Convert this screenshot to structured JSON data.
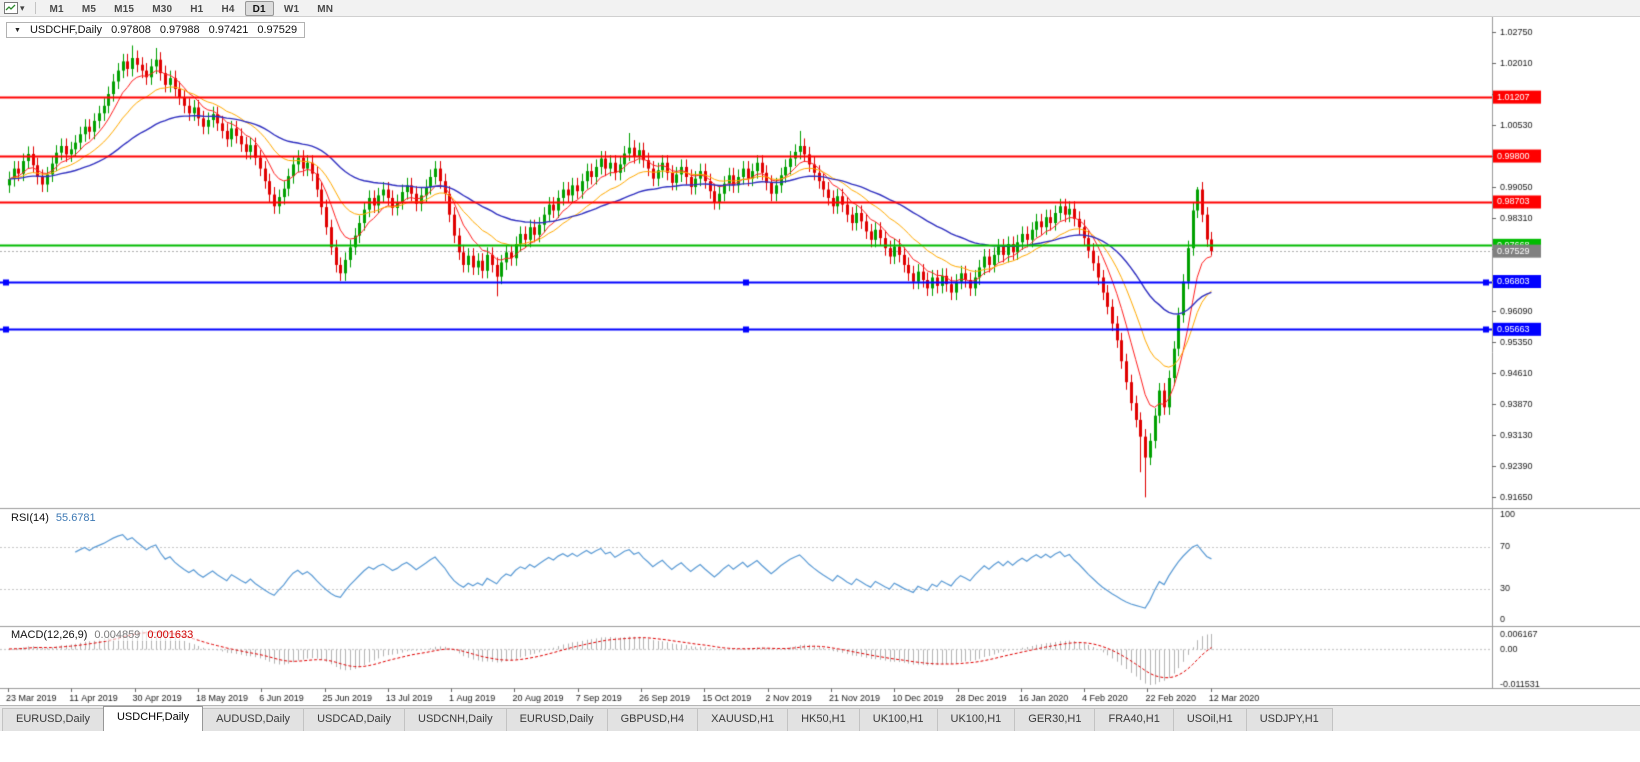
{
  "toolbar": {
    "timeframes": [
      "M1",
      "M5",
      "M15",
      "M30",
      "H1",
      "H4",
      "D1",
      "W1",
      "MN"
    ],
    "active_timeframe": "D1"
  },
  "icons": {
    "dropdown_caret": "▾",
    "symbol_caret": "▼"
  },
  "chart_header": {
    "symbol": "USDCHF,Daily",
    "open": "0.97808",
    "high": "0.97988",
    "low": "0.97421",
    "close": "0.97529"
  },
  "indicators": {
    "rsi": {
      "name": "RSI(14)",
      "value": "55.6781"
    },
    "macd": {
      "name": "MACD(12,26,9)",
      "value_main": "0.004859",
      "value_signal": "0.001633"
    }
  },
  "tabs": [
    "EURUSD,Daily",
    "USDCHF,Daily",
    "AUDUSD,Daily",
    "USDCAD,Daily",
    "USDCNH,Daily",
    "EURUSD,Daily",
    "GBPUSD,H4",
    "XAUUSD,H1",
    "HK50,H1",
    "UK100,H1",
    "UK100,H1",
    "GER30,H1",
    "FRA40,H1",
    "USOil,H1",
    "USDJPY,H1"
  ],
  "active_tab_index": 1,
  "chart_data": {
    "type": "candlestick",
    "symbol": "USDCHF",
    "timeframe": "Daily",
    "title": "USDCHF,Daily",
    "ohlc": {
      "open": 0.97808,
      "high": 0.97988,
      "low": 0.97421,
      "close": 0.97529
    },
    "x_labels": [
      "23 Mar 2019",
      "11 Apr 2019",
      "30 Apr 2019",
      "18 May 2019",
      "6 Jun 2019",
      "25 Jun 2019",
      "13 Jul 2019",
      "1 Aug 2019",
      "20 Aug 2019",
      "7 Sep 2019",
      "26 Sep 2019",
      "15 Oct 2019",
      "2 Nov 2019",
      "21 Nov 2019",
      "10 Dec 2019",
      "28 Dec 2019",
      "16 Jan 2020",
      "4 Feb 2020",
      "22 Feb 2020",
      "12 Mar 2020"
    ],
    "x_label_step": 63.3,
    "y_ticks": [
      "1.02750",
      "1.02010",
      "1.01270",
      "1.00530",
      "0.99790",
      "0.99050",
      "0.98310",
      "0.97570",
      "0.96830",
      "0.96090",
      "0.95350",
      "0.94610",
      "0.93870",
      "0.93130",
      "0.92390",
      "0.91650"
    ],
    "price_min": 0.9142,
    "price_max": 1.0312,
    "first_open": 0.991,
    "default_wick": 0.0018,
    "closes": [
      0.9925,
      0.995,
      0.9938,
      0.9968,
      0.9985,
      0.9958,
      0.993,
      0.9912,
      0.9936,
      0.9962,
      0.9988,
      1.0004,
      0.9984,
      0.9996,
      1.0012,
      1.0032,
      1.005,
      1.0038,
      1.0064,
      1.0082,
      1.01,
      1.0128,
      1.0158,
      1.0184,
      1.0206,
      1.0188,
      1.0214,
      1.0198,
      1.0184,
      1.0168,
      1.0194,
      1.021,
      1.0178,
      1.015,
      1.0166,
      1.014,
      1.012,
      1.01,
      1.0082,
      1.0096,
      1.007,
      1.005,
      1.0066,
      1.008,
      1.0058,
      1.004,
      1.002,
      1.0046,
      1.0028,
      1.0008,
      0.999,
      1.0006,
      0.9976,
      0.995,
      0.992,
      0.9888,
      0.986,
      0.9882,
      0.9902,
      0.9932,
      0.996,
      0.9976,
      0.995,
      0.9964,
      0.9938,
      0.99,
      0.9858,
      0.981,
      0.9762,
      0.972,
      0.97,
      0.9732,
      0.9762,
      0.979,
      0.982,
      0.9852,
      0.988,
      0.9862,
      0.9886,
      0.99,
      0.988,
      0.9856,
      0.987,
      0.9894,
      0.991,
      0.989,
      0.9866,
      0.9886,
      0.9906,
      0.993,
      0.995,
      0.992,
      0.989,
      0.984,
      0.979,
      0.975,
      0.972,
      0.9742,
      0.9714,
      0.973,
      0.9706,
      0.9744,
      0.972,
      0.9692,
      0.9726,
      0.975,
      0.9736,
      0.977,
      0.9794,
      0.978,
      0.981,
      0.9792,
      0.9816,
      0.984,
      0.9864,
      0.985,
      0.988,
      0.99,
      0.9886,
      0.991,
      0.9896,
      0.992,
      0.9944,
      0.993,
      0.9954,
      0.9974,
      0.995,
      0.9964,
      0.994,
      0.996,
      0.9986,
      1.0,
      0.998,
      0.9994,
      0.997,
      0.995,
      0.9926,
      0.9946,
      0.9964,
      0.994,
      0.9916,
      0.9936,
      0.9954,
      0.993,
      0.9906,
      0.9926,
      0.9944,
      0.992,
      0.9896,
      0.987,
      0.989,
      0.9914,
      0.9934,
      0.991,
      0.993,
      0.995,
      0.9926,
      0.9944,
      0.9964,
      0.994,
      0.9916,
      0.989,
      0.991,
      0.9934,
      0.9954,
      0.9974,
      0.999,
      1.0004,
      0.9984,
      0.996,
      0.994,
      0.992,
      0.99,
      0.988,
      0.986,
      0.9884,
      0.9864,
      0.984,
      0.982,
      0.9844,
      0.9824,
      0.98,
      0.978,
      0.9804,
      0.9784,
      0.976,
      0.974,
      0.9764,
      0.9744,
      0.972,
      0.97,
      0.968,
      0.9704,
      0.9684,
      0.9664,
      0.969,
      0.967,
      0.9694,
      0.9674,
      0.9654,
      0.968,
      0.97,
      0.9684,
      0.9664,
      0.969,
      0.9714,
      0.974,
      0.972,
      0.9744,
      0.9764,
      0.9744,
      0.977,
      0.975,
      0.9774,
      0.9794,
      0.978,
      0.9804,
      0.9824,
      0.981,
      0.9834,
      0.982,
      0.9844,
      0.986,
      0.984,
      0.9854,
      0.983,
      0.981,
      0.9784,
      0.9754,
      0.9724,
      0.969,
      0.9654,
      0.962,
      0.958,
      0.954,
      0.949,
      0.944,
      0.939,
      0.935,
      0.931,
      0.926,
      0.93,
      0.936,
      0.942,
      0.938,
      0.945,
      0.952,
      0.96,
      0.968,
      0.976,
      0.985,
      0.99,
      0.984,
      0.97808,
      0.97529
    ],
    "wick_overrides": {
      "26": {
        "h": 1.0244
      },
      "31": {
        "h": 1.0238
      },
      "103": {
        "l": 0.9645
      },
      "131": {
        "h": 1.0035
      },
      "167": {
        "h": 1.004
      },
      "239": {
        "l": 0.9225
      },
      "240": {
        "l": 0.9165
      },
      "251": {
        "h": 0.9906
      },
      "254": {
        "h": 0.97988,
        "l": 0.97421
      }
    },
    "hlines": [
      {
        "value": 1.01207,
        "label": "1.01207",
        "color": "#ff0000",
        "width": 2
      },
      {
        "value": 0.998,
        "label": "0.99800",
        "color": "#ff0000",
        "width": 2
      },
      {
        "value": 0.98703,
        "label": "0.98703",
        "color": "#ff0000",
        "width": 2
      },
      {
        "value": 0.97668,
        "label": "0.97668",
        "color": "#00bb00",
        "width": 2
      },
      {
        "value": 0.96803,
        "label": "0.96803",
        "color": "#0000ff",
        "width": 2,
        "handles": true
      },
      {
        "value": 0.95663,
        "label": "0.95663",
        "color": "#0000ff",
        "width": 2,
        "handles": true
      }
    ],
    "current_price": {
      "value": 0.97529,
      "label": "0.97529",
      "color": "#808080"
    },
    "colors": {
      "bull": "#00a000",
      "bear": "#e00000",
      "ma_fast": "#ff2020",
      "ma_mid": "#ffaa00",
      "ma_slow": "#3030c0",
      "rsi": "#5b9bd5",
      "macd_hist": "#b4b4b4",
      "macd_signal": "#e00000"
    },
    "ma_periods": {
      "fast": 8,
      "mid": 18,
      "slow": 45
    },
    "rsi_period": 14,
    "rsi_levels_dotted": [
      70,
      30
    ],
    "rsi_scale_labels": [
      [
        "100",
        100
      ],
      [
        "70",
        70
      ],
      [
        "30",
        30
      ],
      [
        "0",
        0
      ]
    ],
    "macd_periods": [
      12,
      26,
      9
    ],
    "macd_scale_labels": {
      "top": "0.006167",
      "zero": "0.00",
      "bottom": "-0.011531"
    }
  }
}
